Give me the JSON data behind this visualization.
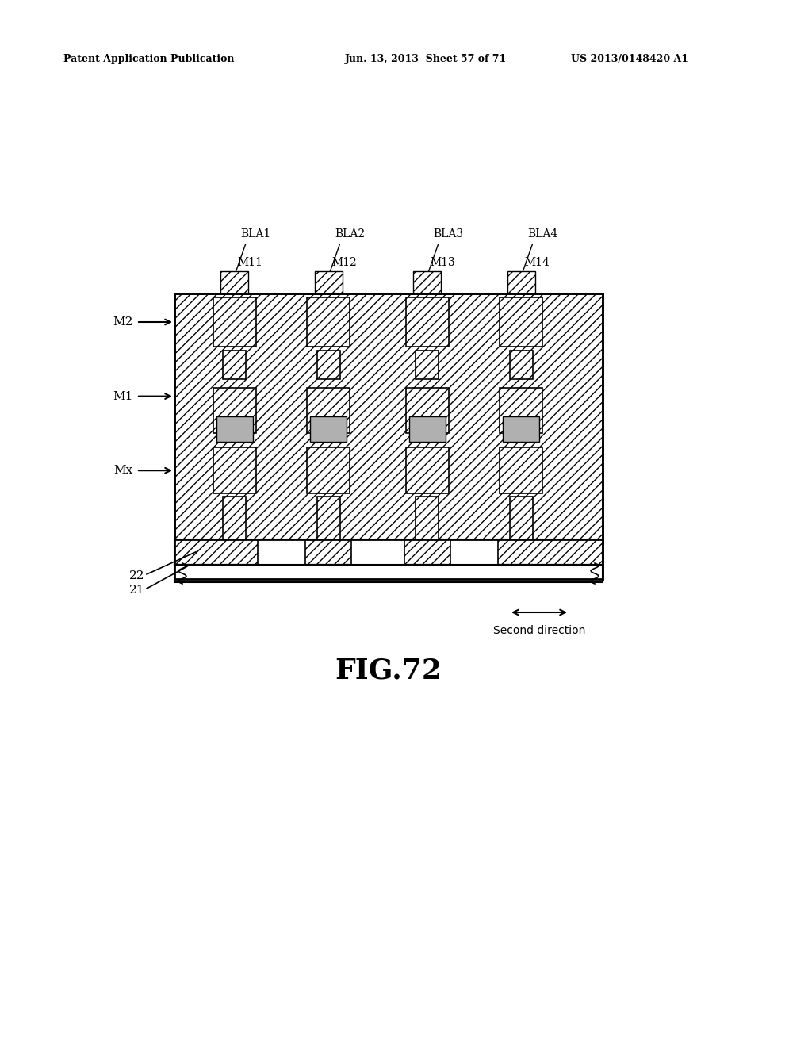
{
  "header_left": "Patent Application Publication",
  "header_mid": "Jun. 13, 2013  Sheet 57 of 71",
  "header_right": "US 2013/0148420 A1",
  "figure_label": "FIG.72",
  "label_M2": "M2",
  "label_M1": "M1",
  "label_Mx": "Mx",
  "label_22": "22",
  "label_21": "21",
  "labels_top_BLA": [
    "BLA1",
    "BLA2",
    "BLA3",
    "BLA4"
  ],
  "labels_top_M": [
    "M11",
    "M12",
    "M13",
    "M14"
  ],
  "second_direction": "Second direction",
  "bg_color": "#ffffff"
}
